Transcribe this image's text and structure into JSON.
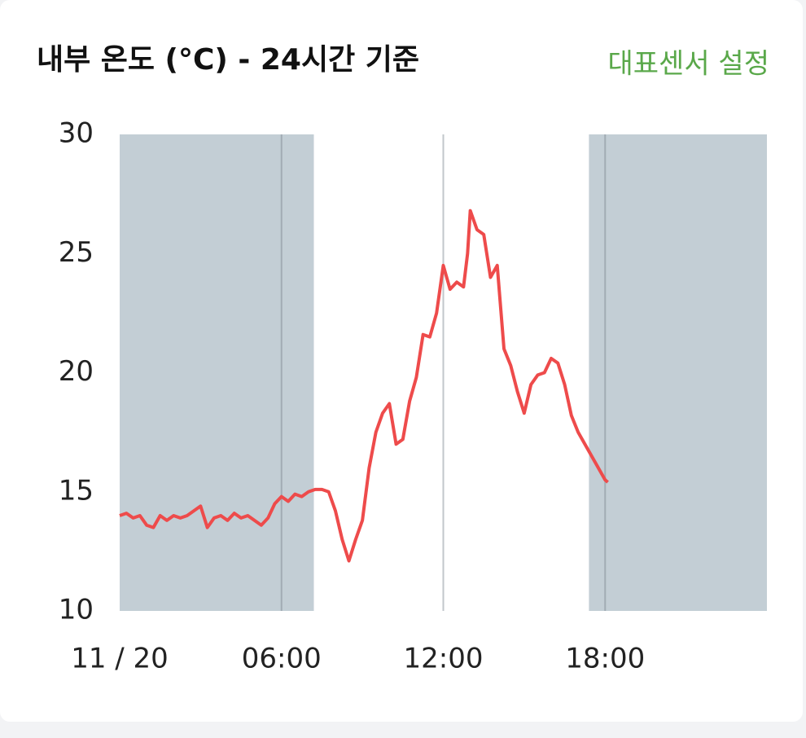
{
  "chart_data": {
    "type": "line",
    "title": "내부 온도 (°C) - 24시간 기준",
    "action": "대표센서 설정",
    "x": [
      0,
      0.25,
      0.5,
      0.75,
      1,
      1.25,
      1.5,
      1.75,
      2,
      2.25,
      2.5,
      2.75,
      3,
      3.25,
      3.5,
      3.75,
      4,
      4.25,
      4.5,
      4.75,
      5,
      5.25,
      5.5,
      5.75,
      6,
      6.25,
      6.5,
      6.75,
      7,
      7.25,
      7.5,
      7.75,
      8,
      8.25,
      8.5,
      8.75,
      9,
      9.25,
      9.5,
      9.75,
      10,
      10.25,
      10.5,
      10.75,
      11,
      11.25,
      11.5,
      11.75,
      12,
      12.25,
      12.5,
      12.75,
      12.9,
      13,
      13.25,
      13.5,
      13.75,
      14,
      14.25,
      14.5,
      14.75,
      15,
      15.25,
      15.5,
      15.75,
      16,
      16.25,
      16.5,
      16.75,
      17,
      17.25,
      17.5,
      17.75,
      18,
      18.1
    ],
    "series": [
      {
        "name": "내부 온도",
        "color": "#ee4b4b",
        "values": [
          14.0,
          14.1,
          13.9,
          14.0,
          13.6,
          13.5,
          14.0,
          13.8,
          14.0,
          13.9,
          14.0,
          14.2,
          14.4,
          13.5,
          13.9,
          14.0,
          13.8,
          14.1,
          13.9,
          14.0,
          13.8,
          13.6,
          13.9,
          14.5,
          14.8,
          14.6,
          14.9,
          14.8,
          15.0,
          15.1,
          15.1,
          15.0,
          14.2,
          13.0,
          12.1,
          13.0,
          13.8,
          16.0,
          17.5,
          18.3,
          18.7,
          17.0,
          17.2,
          18.8,
          19.8,
          21.6,
          21.5,
          22.5,
          24.5,
          23.5,
          23.8,
          23.6,
          25.0,
          26.8,
          26.0,
          25.8,
          24.0,
          24.5,
          21.0,
          20.3,
          19.2,
          18.3,
          19.5,
          19.9,
          20.0,
          20.6,
          20.4,
          19.5,
          18.2,
          17.5,
          17.0,
          16.5,
          16.0,
          15.5,
          15.4
        ]
      }
    ],
    "xlim": [
      0,
      24
    ],
    "xticks": [
      {
        "value": 0,
        "label": "11 / 20"
      },
      {
        "value": 6,
        "label": "06:00"
      },
      {
        "value": 12,
        "label": "12:00"
      },
      {
        "value": 18,
        "label": "18:00"
      }
    ],
    "ylim": [
      10,
      30
    ],
    "yticks": [
      10,
      15,
      20,
      25,
      30
    ],
    "shaded_ranges": [
      [
        0,
        7.2
      ],
      [
        17.4,
        24
      ]
    ],
    "shade_color": "#c3ced5",
    "grid": true
  }
}
